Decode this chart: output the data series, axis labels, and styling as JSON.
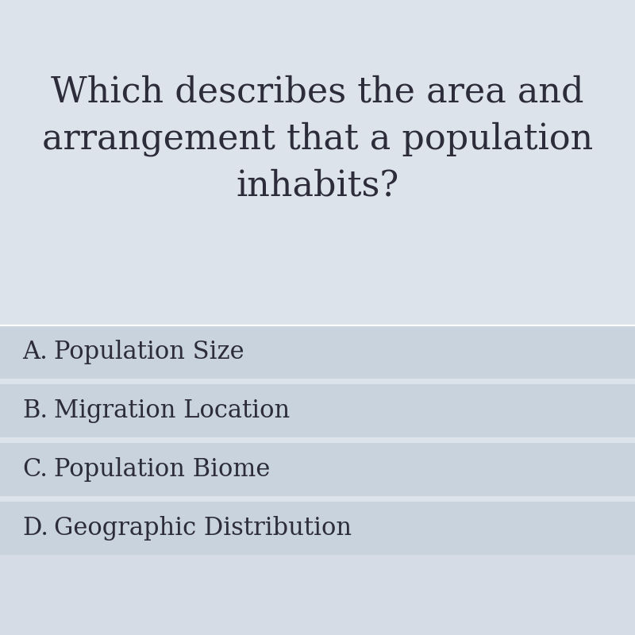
{
  "question_line1": "Which describes the area and",
  "question_line2": "arrangement that a population",
  "question_line3": "inhabits?",
  "options": [
    {
      "label": "A.",
      "text": "Population Size"
    },
    {
      "label": "B.",
      "text": "Migration Location"
    },
    {
      "label": "C.",
      "text": "Population Biome"
    },
    {
      "label": "D.",
      "text": "Geographic Distribution"
    }
  ],
  "bg_color": "#d6dce5",
  "question_bg_color": "#dde3ea",
  "option_band_color": "#c9d3de",
  "option_gap_color": "#dde3eb",
  "divider_color": "#ffffff",
  "text_color": "#2c2c3a",
  "question_fontsize": 32,
  "option_fontsize": 22,
  "fig_width": 8.0,
  "fig_height": 8.0,
  "dpi": 100
}
